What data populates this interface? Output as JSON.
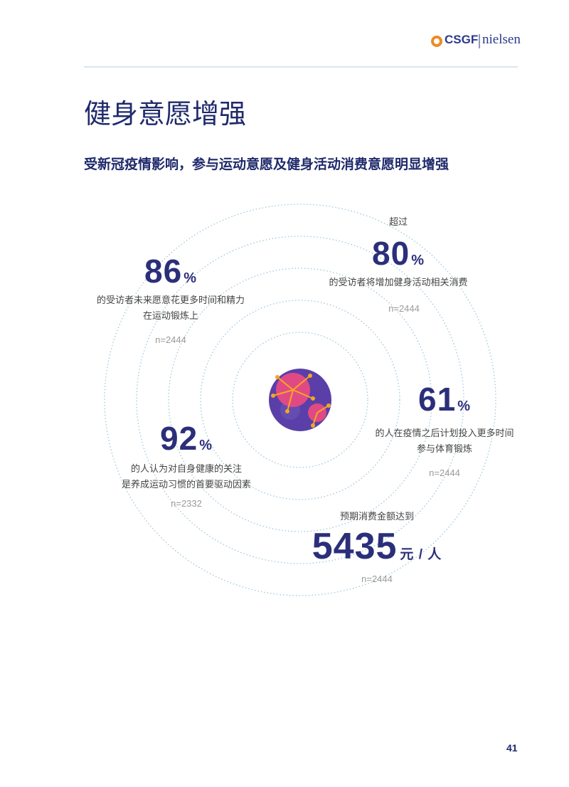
{
  "header": {
    "logo": "CSGF",
    "partner": "nielsen"
  },
  "title": "健身意愿增强",
  "subtitle": "受新冠疫情影响，参与运动意愿及健身活动消费意愿明显增强",
  "stats": [
    {
      "value": 86,
      "unit": "%",
      "lines": [
        "的受访者未来愿意花更多时间和精力",
        "在运动锻炼上"
      ],
      "sample": "n=2444"
    },
    {
      "prefix": "超过",
      "value": 80,
      "unit": "%",
      "lines": [
        "的受访者将增加健身活动相关消费"
      ],
      "sample": "n=2444"
    },
    {
      "value": 61,
      "unit": "%",
      "lines": [
        "的人在疫情之后计划投入更多时间",
        "参与体育锻炼"
      ],
      "sample": "n=2444"
    },
    {
      "value": 92,
      "unit": "%",
      "lines": [
        "的人认为对自身健康的关注",
        "是养成运动习惯的首要驱动因素"
      ],
      "sample": "n=2332"
    },
    {
      "prefix": "预期消费金额达到",
      "value": 5435,
      "unit": "元 / 人",
      "lines": [],
      "sample": "n=2444"
    }
  ],
  "page_number": "41"
}
